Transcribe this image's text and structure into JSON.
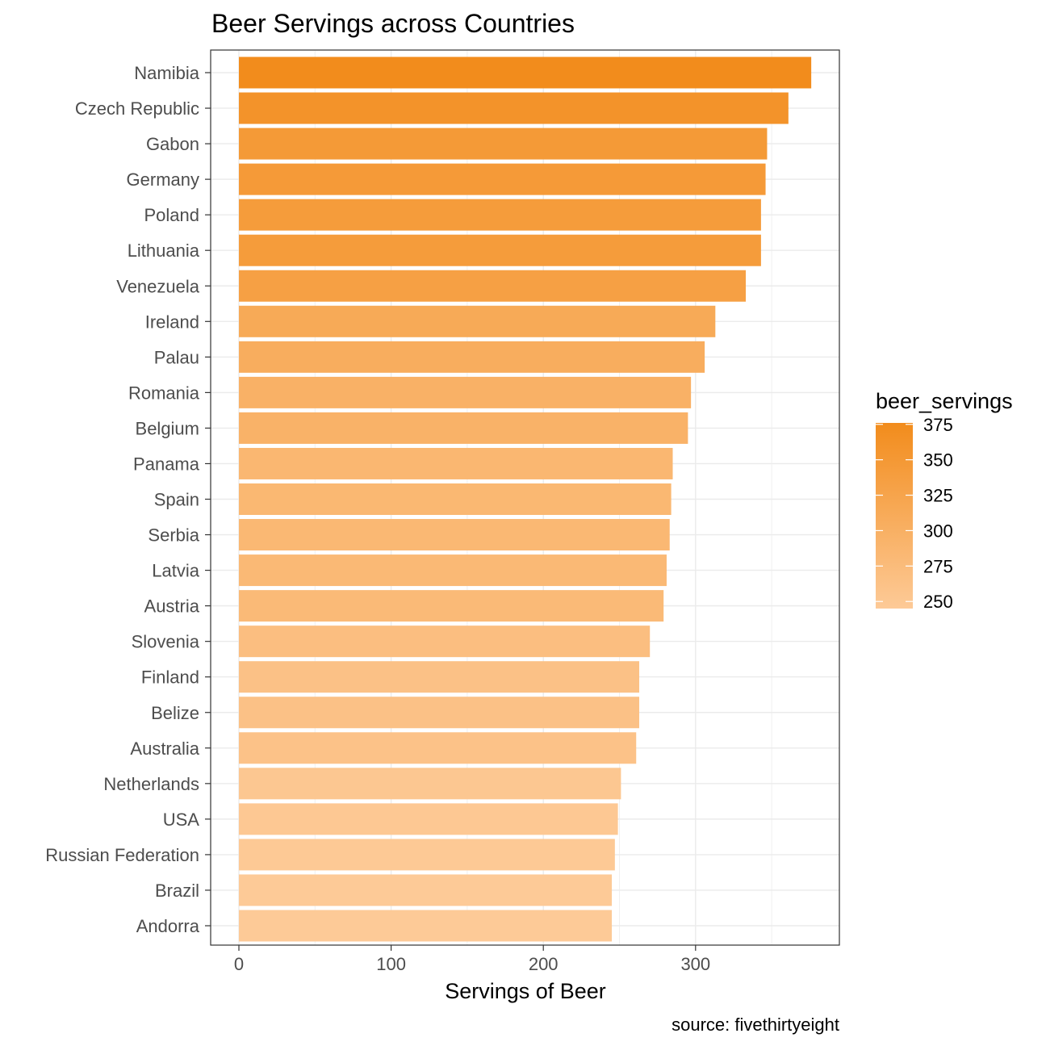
{
  "chart_data": {
    "type": "bar",
    "orientation": "horizontal",
    "title": "Beer Servings across Countries",
    "xlabel": "Servings of Beer",
    "ylabel": "",
    "caption": "source: fivethirtyeight",
    "xlim": [
      0,
      393
    ],
    "xticks": [
      0,
      100,
      200,
      300
    ],
    "grid": true,
    "categories": [
      "Namibia",
      "Czech Republic",
      "Gabon",
      "Germany",
      "Poland",
      "Lithuania",
      "Venezuela",
      "Ireland",
      "Palau",
      "Romania",
      "Belgium",
      "Panama",
      "Spain",
      "Serbia",
      "Latvia",
      "Austria",
      "Slovenia",
      "Finland",
      "Belize",
      "Australia",
      "Netherlands",
      "USA",
      "Russian Federation",
      "Brazil",
      "Andorra"
    ],
    "values": [
      376,
      361,
      347,
      346,
      343,
      343,
      333,
      313,
      306,
      297,
      295,
      285,
      284,
      283,
      281,
      279,
      270,
      263,
      263,
      261,
      251,
      249,
      247,
      245,
      245
    ],
    "legend": {
      "title": "beer_servings",
      "position": "right",
      "ticks": [
        375,
        350,
        325,
        300,
        275,
        250
      ],
      "range": [
        245,
        376
      ],
      "color_low": "#fdca97",
      "color_high": "#f28c1c"
    }
  }
}
